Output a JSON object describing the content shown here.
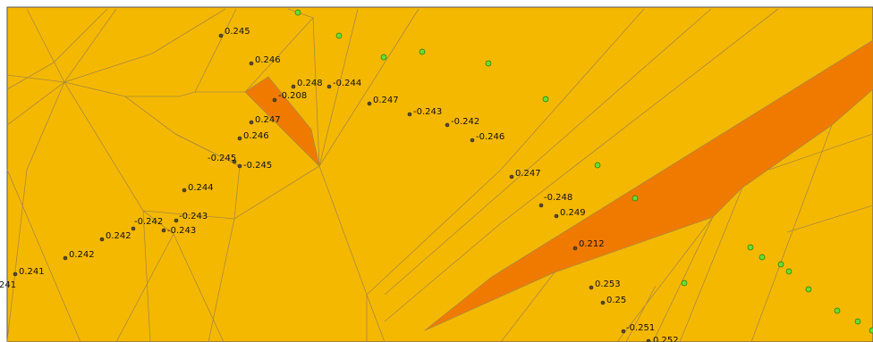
{
  "labels": [
    {
      "text": "0.245"
    },
    {
      "text": "0.246"
    },
    {
      "text": "0.248"
    },
    {
      "text": "-0.244"
    },
    {
      "text": "-0.208"
    },
    {
      "text": "0.247"
    },
    {
      "text": "-0.243"
    },
    {
      "text": "-0.242"
    },
    {
      "text": "-0.246"
    },
    {
      "text": "0.247"
    },
    {
      "text": "0.246"
    },
    {
      "text": "-0.245"
    },
    {
      "text": "-0.245"
    },
    {
      "text": "0.244"
    },
    {
      "text": "-0.243"
    },
    {
      "text": "-0.243"
    },
    {
      "text": "-0.242"
    },
    {
      "text": "0.242"
    },
    {
      "text": "0.242"
    },
    {
      "text": "0.241"
    },
    {
      "text": "241"
    },
    {
      "text": "0.247"
    },
    {
      "text": "-0.248"
    },
    {
      "text": "0.249"
    },
    {
      "text": "0.212"
    },
    {
      "text": "0.253"
    },
    {
      "text": "0.25"
    },
    {
      "text": "-0.251"
    },
    {
      "text": "0.252"
    }
  ]
}
